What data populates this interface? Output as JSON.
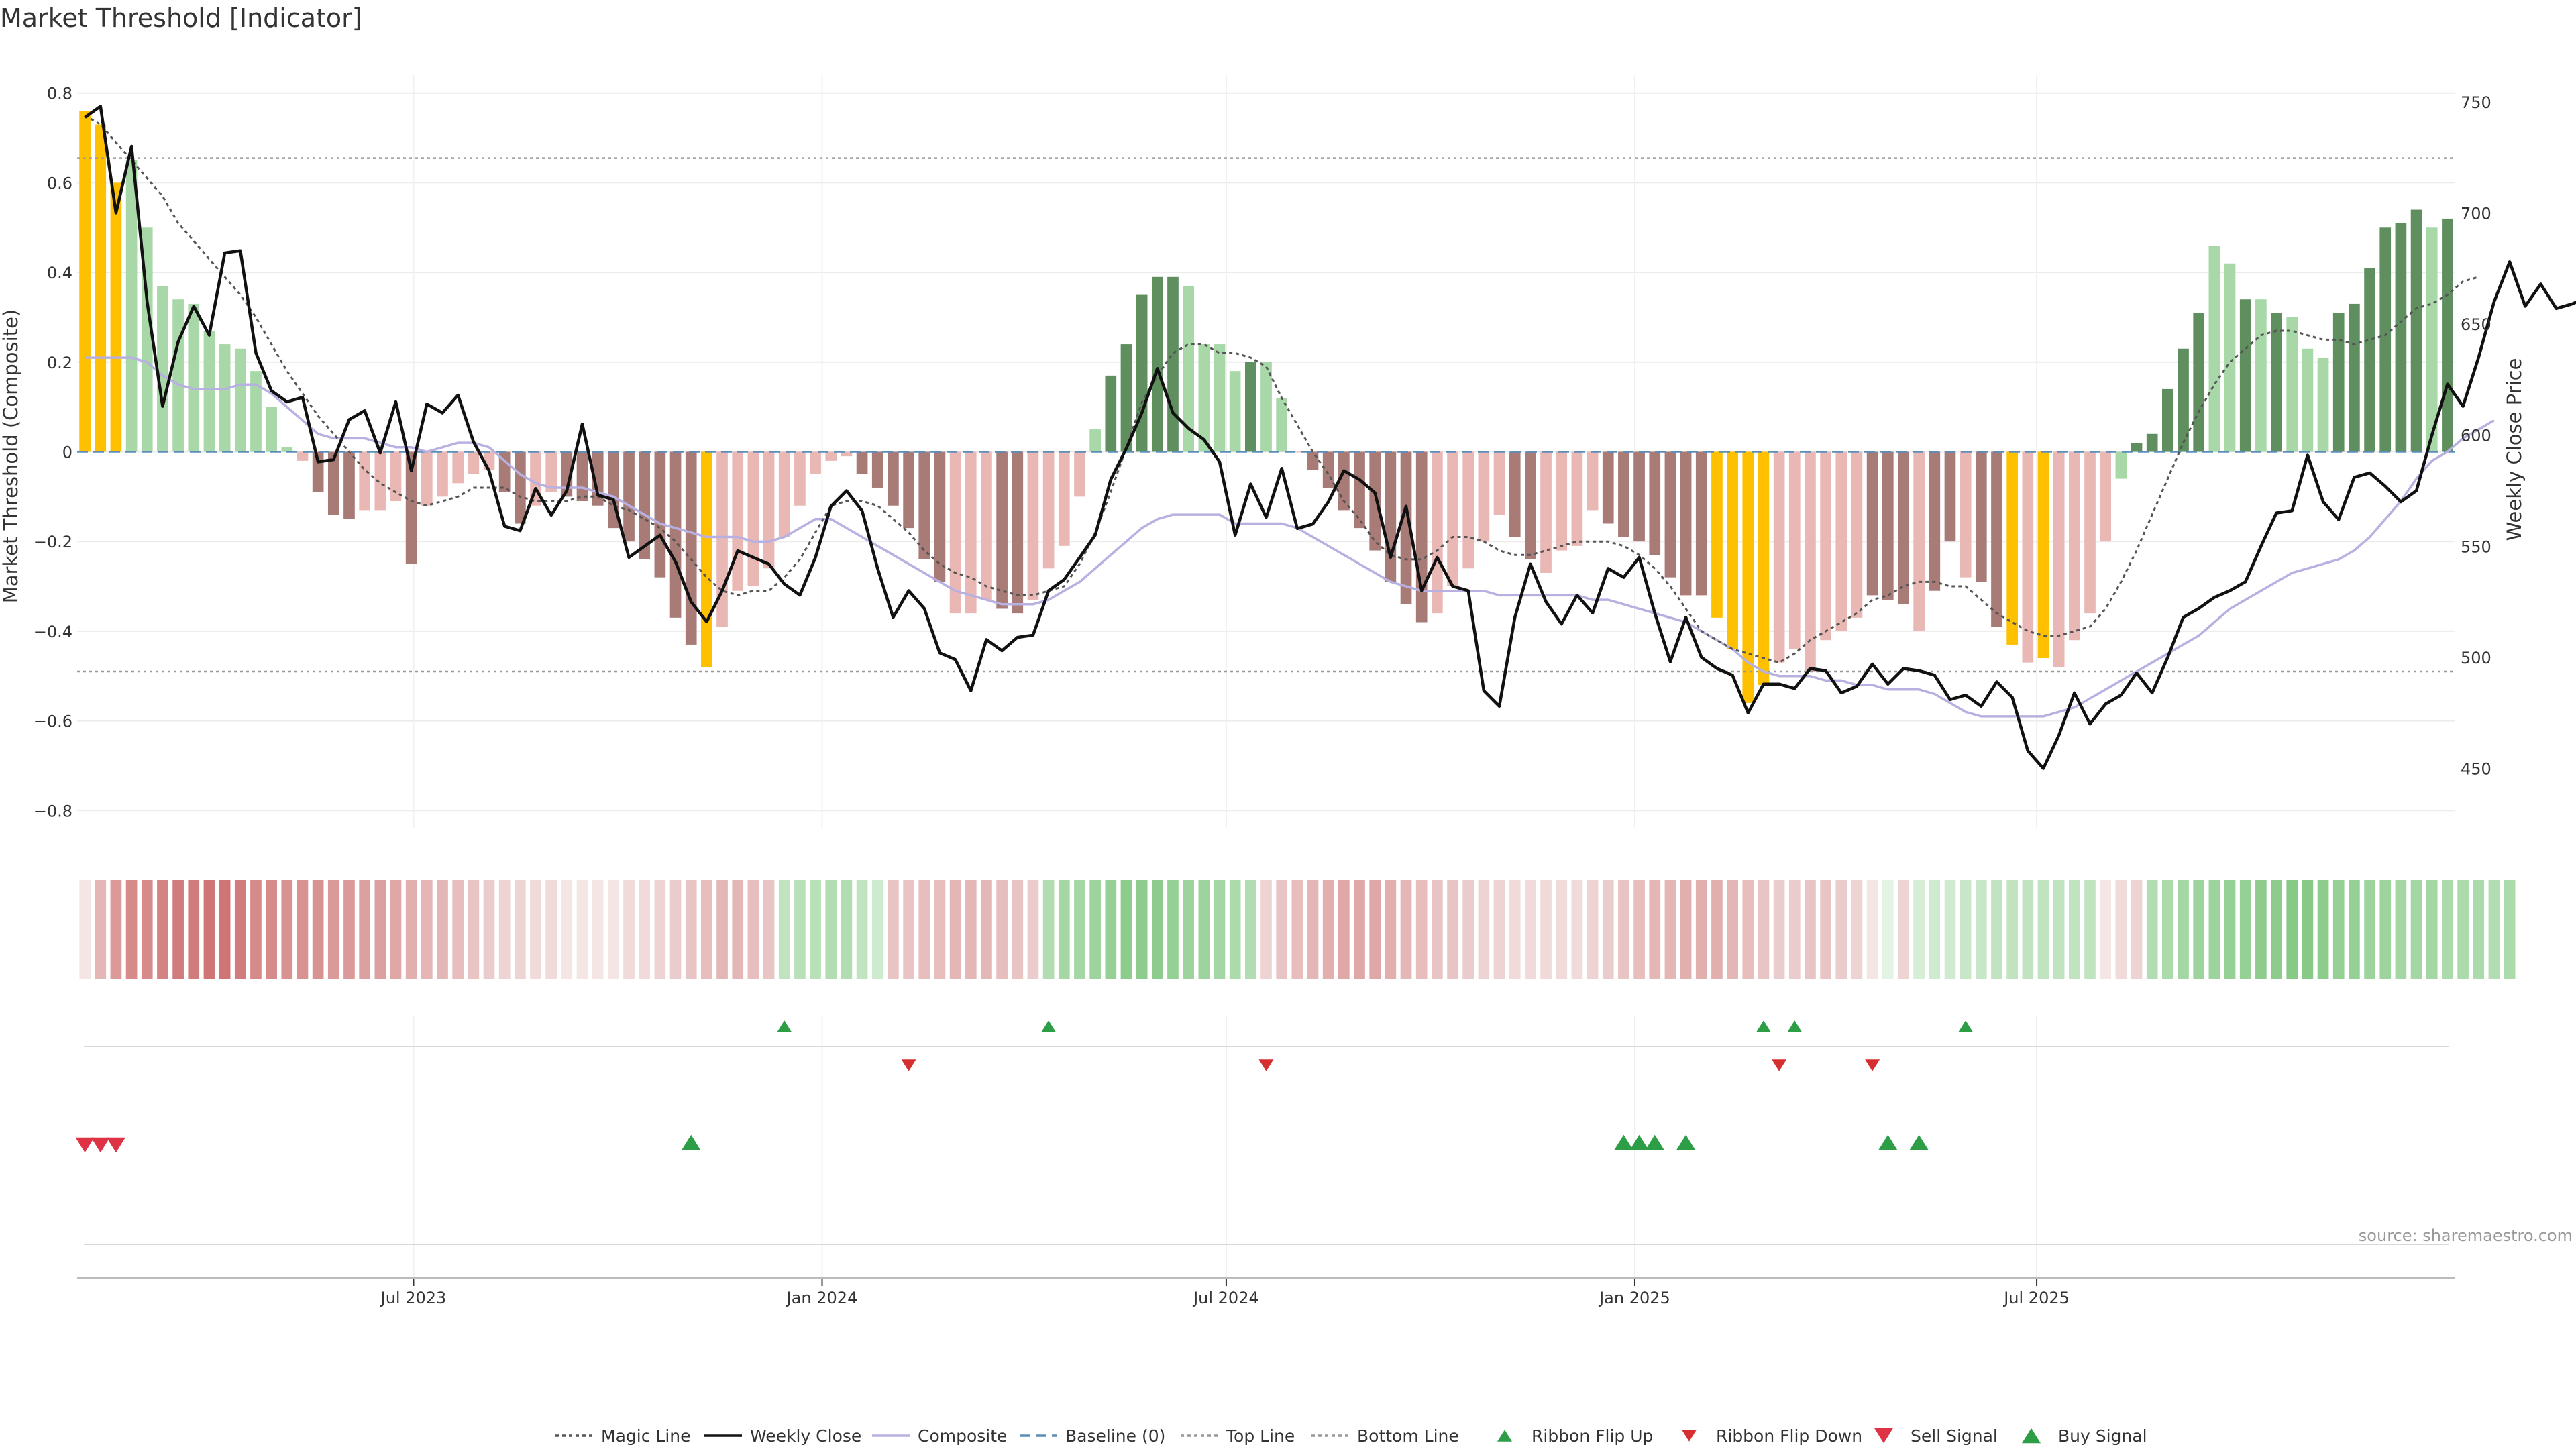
{
  "title": "Market Threshold [Indicator]",
  "source": "source: sharemaestro.com",
  "chart_data": {
    "type": "bar",
    "title": "Market Threshold [Indicator]",
    "ylabel": "Market Threshold (Composite)",
    "y2label": "Weekly Close Price",
    "ylim": [
      -0.84,
      0.84
    ],
    "y2lim": [
      423,
      762
    ],
    "yticks": [
      "0.8",
      "0.6",
      "0.4",
      "0.2",
      "0",
      "−0.2",
      "−0.4",
      "−0.6",
      "−0.8"
    ],
    "y2ticks": [
      "750",
      "700",
      "650",
      "600",
      "550",
      "500",
      "450"
    ],
    "xticks": [
      "Jul 2023",
      "Jan 2024",
      "Jul 2024",
      "Jan 2025",
      "Jul 2025"
    ],
    "x_start": "2023-02-03",
    "x_step_days": 7,
    "top_line": 0.655,
    "bottom_line": -0.49,
    "baseline": 0,
    "composite": [
      0.76,
      0.73,
      0.6,
      0.65,
      0.5,
      0.37,
      0.34,
      0.33,
      0.27,
      0.24,
      0.23,
      0.18,
      0.1,
      0.01,
      -0.02,
      -0.09,
      -0.14,
      -0.15,
      -0.13,
      -0.13,
      -0.11,
      -0.25,
      -0.12,
      -0.1,
      -0.07,
      -0.05,
      -0.04,
      -0.09,
      -0.16,
      -0.12,
      -0.09,
      -0.1,
      -0.11,
      -0.12,
      -0.17,
      -0.2,
      -0.24,
      -0.28,
      -0.37,
      -0.43,
      -0.48,
      -0.39,
      -0.31,
      -0.3,
      -0.26,
      -0.19,
      -0.12,
      -0.05,
      -0.02,
      -0.01,
      -0.05,
      -0.08,
      -0.12,
      -0.17,
      -0.24,
      -0.29,
      -0.36,
      -0.36,
      -0.33,
      -0.35,
      -0.36,
      -0.33,
      -0.26,
      -0.21,
      -0.1,
      0.05,
      0.17,
      0.24,
      0.35,
      0.39,
      0.39,
      0.37,
      0.24,
      0.24,
      0.18,
      0.2,
      0.2,
      0.12,
      0.0,
      -0.04,
      -0.08,
      -0.13,
      -0.17,
      -0.22,
      -0.29,
      -0.34,
      -0.38,
      -0.36,
      -0.3,
      -0.26,
      -0.2,
      -0.14,
      -0.19,
      -0.24,
      -0.27,
      -0.22,
      -0.21,
      -0.13,
      -0.16,
      -0.19,
      -0.2,
      -0.23,
      -0.28,
      -0.32,
      -0.32,
      -0.37,
      -0.44,
      -0.56,
      -0.52,
      -0.47,
      -0.44,
      -0.49,
      -0.42,
      -0.4,
      -0.37,
      -0.32,
      -0.33,
      -0.34,
      -0.4,
      -0.31,
      -0.2,
      -0.28,
      -0.29,
      -0.39,
      -0.43,
      -0.47,
      -0.46,
      -0.48,
      -0.42,
      -0.36,
      -0.2,
      -0.06,
      0.02,
      0.04,
      0.14,
      0.23,
      0.31,
      0.46,
      0.42,
      0.34,
      0.34,
      0.31,
      0.3,
      0.23,
      0.21,
      0.31,
      0.33,
      0.41,
      0.5,
      0.51,
      0.54,
      0.5,
      0.52
    ],
    "bar_colors": [
      "#ffc000",
      "#ffc000",
      "#ffc000",
      "#a8d8a8",
      "#a8d8a8",
      "#a8d8a8",
      "#a8d8a8",
      "#a8d8a8",
      "#a8d8a8",
      "#a8d8a8",
      "#a8d8a8",
      "#a8d8a8",
      "#a8d8a8",
      "#a8d8a8",
      "#eab8b4",
      "#a87b77",
      "#a87b77",
      "#a87b77",
      "#eab8b4",
      "#eab8b4",
      "#eab8b4",
      "#a87b77",
      "#eab8b4",
      "#eab8b4",
      "#eab8b4",
      "#eab8b4",
      "#eab8b4",
      "#a87b77",
      "#a87b77",
      "#eab8b4",
      "#eab8b4",
      "#a87b77",
      "#a87b77",
      "#a87b77",
      "#a87b77",
      "#a87b77",
      "#a87b77",
      "#a87b77",
      "#a87b77",
      "#a87b77",
      "#ffc000",
      "#eab8b4",
      "#eab8b4",
      "#eab8b4",
      "#eab8b4",
      "#eab8b4",
      "#eab8b4",
      "#eab8b4",
      "#eab8b4",
      "#eab8b4",
      "#a87b77",
      "#a87b77",
      "#a87b77",
      "#a87b77",
      "#a87b77",
      "#a87b77",
      "#eab8b4",
      "#eab8b4",
      "#eab8b4",
      "#a87b77",
      "#a87b77",
      "#eab8b4",
      "#eab8b4",
      "#eab8b4",
      "#eab8b4",
      "#a8d8a8",
      "#5f8f5f",
      "#5f8f5f",
      "#5f8f5f",
      "#5f8f5f",
      "#5f8f5f",
      "#a8d8a8",
      "#a8d8a8",
      "#a8d8a8",
      "#a8d8a8",
      "#5f8f5f",
      "#a8d8a8",
      "#a8d8a8",
      "#eab8b4",
      "#a87b77",
      "#a87b77",
      "#a87b77",
      "#a87b77",
      "#a87b77",
      "#a87b77",
      "#a87b77",
      "#a87b77",
      "#eab8b4",
      "#eab8b4",
      "#eab8b4",
      "#eab8b4",
      "#eab8b4",
      "#a87b77",
      "#a87b77",
      "#eab8b4",
      "#eab8b4",
      "#eab8b4",
      "#eab8b4",
      "#a87b77",
      "#a87b77",
      "#a87b77",
      "#a87b77",
      "#a87b77",
      "#a87b77",
      "#a87b77",
      "#ffc000",
      "#ffc000",
      "#ffc000",
      "#ffc000",
      "#eab8b4",
      "#eab8b4",
      "#eab8b4",
      "#eab8b4",
      "#eab8b4",
      "#eab8b4",
      "#a87b77",
      "#a87b77",
      "#a87b77",
      "#eab8b4",
      "#a87b77",
      "#a87b77",
      "#eab8b4",
      "#a87b77",
      "#a87b77",
      "#ffc000",
      "#eab8b4",
      "#ffc000",
      "#eab8b4",
      "#eab8b4",
      "#eab8b4",
      "#eab8b4",
      "#a8d8a8",
      "#5f8f5f",
      "#5f8f5f",
      "#5f8f5f",
      "#5f8f5f",
      "#5f8f5f",
      "#a8d8a8",
      "#a8d8a8",
      "#5f8f5f",
      "#a8d8a8",
      "#5f8f5f",
      "#a8d8a8",
      "#a8d8a8",
      "#a8d8a8",
      "#5f8f5f",
      "#5f8f5f",
      "#5f8f5f",
      "#5f8f5f",
      "#5f8f5f",
      "#5f8f5f",
      "#a8d8a8",
      "#5f8f5f"
    ],
    "weekly_close": [
      743,
      748,
      700,
      730,
      660,
      613,
      642,
      658,
      645,
      682,
      683,
      637,
      620,
      615,
      617,
      588,
      589,
      607,
      611,
      592,
      615,
      584,
      614,
      610,
      618,
      597,
      584,
      559,
      557,
      576,
      564,
      575,
      605,
      573,
      571,
      545,
      550,
      555,
      543,
      525,
      516,
      530,
      548,
      545,
      542,
      533,
      528,
      545,
      568,
      575,
      566,
      540,
      518,
      530,
      522,
      502,
      499,
      485,
      508,
      503,
      509,
      510,
      530,
      535,
      545,
      555,
      580,
      594,
      610,
      630,
      610,
      603,
      598,
      588,
      555,
      578,
      563,
      585,
      558,
      560,
      570,
      584,
      580,
      574,
      545,
      568,
      530,
      545,
      532,
      530,
      485,
      478,
      518,
      542,
      525,
      515,
      528,
      520,
      540,
      536,
      545,
      520,
      498,
      518,
      500,
      495,
      492,
      475,
      488,
      488,
      486,
      495,
      494,
      484,
      487,
      497,
      488,
      495,
      494,
      492,
      481,
      483,
      478,
      489,
      482,
      458,
      450,
      465,
      484,
      470,
      479,
      483,
      493,
      484,
      500,
      518,
      522,
      527,
      530,
      534,
      550,
      565,
      566,
      591,
      570,
      562,
      581,
      583,
      577,
      570,
      575,
      600,
      623,
      613,
      635,
      660,
      678,
      658,
      668,
      657,
      659,
      662
    ],
    "composite_line": [
      0.21,
      0.21,
      0.21,
      0.21,
      0.2,
      0.17,
      0.15,
      0.14,
      0.14,
      0.14,
      0.15,
      0.15,
      0.13,
      0.1,
      0.07,
      0.04,
      0.03,
      0.03,
      0.03,
      0.02,
      0.01,
      0.01,
      0.0,
      0.01,
      0.02,
      0.02,
      0.01,
      -0.02,
      -0.05,
      -0.07,
      -0.08,
      -0.08,
      -0.08,
      -0.09,
      -0.1,
      -0.12,
      -0.14,
      -0.16,
      -0.17,
      -0.18,
      -0.19,
      -0.19,
      -0.19,
      -0.2,
      -0.2,
      -0.19,
      -0.17,
      -0.15,
      -0.15,
      -0.17,
      -0.19,
      -0.21,
      -0.23,
      -0.25,
      -0.27,
      -0.29,
      -0.31,
      -0.32,
      -0.33,
      -0.34,
      -0.34,
      -0.34,
      -0.33,
      -0.31,
      -0.29,
      -0.26,
      -0.23,
      -0.2,
      -0.17,
      -0.15,
      -0.14,
      -0.14,
      -0.14,
      -0.14,
      -0.16,
      -0.16,
      -0.16,
      -0.16,
      -0.17,
      -0.19,
      -0.21,
      -0.23,
      -0.25,
      -0.27,
      -0.29,
      -0.3,
      -0.31,
      -0.31,
      -0.31,
      -0.31,
      -0.31,
      -0.32,
      -0.32,
      -0.32,
      -0.32,
      -0.32,
      -0.32,
      -0.33,
      -0.33,
      -0.34,
      -0.35,
      -0.36,
      -0.37,
      -0.38,
      -0.4,
      -0.42,
      -0.44,
      -0.47,
      -0.49,
      -0.5,
      -0.5,
      -0.5,
      -0.51,
      -0.51,
      -0.52,
      -0.52,
      -0.53,
      -0.53,
      -0.53,
      -0.54,
      -0.56,
      -0.58,
      -0.59,
      -0.59,
      -0.59,
      -0.59,
      -0.59,
      -0.58,
      -0.57,
      -0.55,
      -0.53,
      -0.51,
      -0.49,
      -0.47,
      -0.45,
      -0.43,
      -0.41,
      -0.38,
      -0.35,
      -0.33,
      -0.31,
      -0.29,
      -0.27,
      -0.26,
      -0.25,
      -0.24,
      -0.22,
      -0.19,
      -0.15,
      -0.11,
      -0.06,
      -0.02,
      0.0,
      0.03,
      0.05,
      0.07
    ],
    "magic_line": [
      0.75,
      0.73,
      0.69,
      0.65,
      0.61,
      0.57,
      0.51,
      0.47,
      0.43,
      0.39,
      0.35,
      0.3,
      0.24,
      0.18,
      0.13,
      0.08,
      0.04,
      0.0,
      -0.04,
      -0.07,
      -0.09,
      -0.11,
      -0.12,
      -0.11,
      -0.1,
      -0.08,
      -0.08,
      -0.08,
      -0.1,
      -0.11,
      -0.11,
      -0.11,
      -0.1,
      -0.1,
      -0.12,
      -0.13,
      -0.15,
      -0.17,
      -0.2,
      -0.24,
      -0.28,
      -0.31,
      -0.32,
      -0.31,
      -0.31,
      -0.28,
      -0.24,
      -0.18,
      -0.12,
      -0.11,
      -0.11,
      -0.12,
      -0.15,
      -0.18,
      -0.22,
      -0.25,
      -0.27,
      -0.28,
      -0.3,
      -0.31,
      -0.32,
      -0.32,
      -0.31,
      -0.3,
      -0.25,
      -0.18,
      -0.09,
      0.01,
      0.11,
      0.17,
      0.22,
      0.24,
      0.24,
      0.22,
      0.22,
      0.21,
      0.19,
      0.12,
      0.06,
      0.0,
      -0.05,
      -0.11,
      -0.15,
      -0.2,
      -0.23,
      -0.24,
      -0.24,
      -0.22,
      -0.19,
      -0.19,
      -0.2,
      -0.22,
      -0.23,
      -0.23,
      -0.22,
      -0.21,
      -0.2,
      -0.2,
      -0.2,
      -0.21,
      -0.23,
      -0.26,
      -0.3,
      -0.35,
      -0.4,
      -0.42,
      -0.44,
      -0.45,
      -0.46,
      -0.47,
      -0.45,
      -0.42,
      -0.4,
      -0.38,
      -0.36,
      -0.33,
      -0.32,
      -0.3,
      -0.29,
      -0.29,
      -0.3,
      -0.3,
      -0.33,
      -0.36,
      -0.38,
      -0.4,
      -0.41,
      -0.41,
      -0.4,
      -0.39,
      -0.35,
      -0.29,
      -0.22,
      -0.14,
      -0.06,
      0.02,
      0.09,
      0.15,
      0.2,
      0.23,
      0.26,
      0.27,
      0.27,
      0.26,
      0.25,
      0.25,
      0.24,
      0.25,
      0.26,
      0.29,
      0.32,
      0.33,
      0.35,
      0.38,
      0.39
    ],
    "ribbon_color_scale": [
      "#c85f5f",
      "#f0dada",
      "#ffffff",
      "#d6eed6",
      "#5cb55c"
    ],
    "ribbon": [
      -0.1,
      -0.4,
      -0.6,
      -0.7,
      -0.7,
      -0.75,
      -0.8,
      -0.8,
      -0.85,
      -0.85,
      -0.8,
      -0.7,
      -0.7,
      -0.65,
      -0.65,
      -0.65,
      -0.6,
      -0.6,
      -0.55,
      -0.55,
      -0.5,
      -0.45,
      -0.4,
      -0.4,
      -0.35,
      -0.3,
      -0.25,
      -0.2,
      -0.2,
      -0.15,
      -0.15,
      -0.1,
      -0.1,
      -0.1,
      -0.1,
      -0.15,
      -0.15,
      -0.2,
      -0.25,
      -0.3,
      -0.35,
      -0.4,
      -0.4,
      -0.35,
      -0.3,
      0.3,
      0.35,
      0.35,
      0.4,
      0.4,
      0.3,
      0.2,
      -0.3,
      -0.3,
      -0.35,
      -0.35,
      -0.4,
      -0.4,
      -0.4,
      -0.35,
      -0.3,
      -0.25,
      0.4,
      0.5,
      0.5,
      0.55,
      0.6,
      0.65,
      0.65,
      0.65,
      0.6,
      0.55,
      0.55,
      0.5,
      0.45,
      0.4,
      -0.2,
      -0.3,
      -0.35,
      -0.4,
      -0.45,
      -0.5,
      -0.5,
      -0.5,
      -0.45,
      -0.4,
      -0.35,
      -0.3,
      -0.3,
      -0.25,
      -0.2,
      -0.2,
      -0.15,
      -0.15,
      -0.15,
      -0.15,
      -0.15,
      -0.2,
      -0.25,
      -0.3,
      -0.35,
      -0.4,
      -0.4,
      -0.45,
      -0.45,
      -0.45,
      -0.4,
      -0.35,
      -0.3,
      -0.25,
      -0.25,
      -0.3,
      -0.3,
      -0.25,
      -0.2,
      -0.1,
      0.1,
      -0.2,
      0.15,
      0.2,
      0.2,
      0.25,
      0.25,
      0.3,
      0.3,
      0.3,
      0.3,
      0.3,
      0.3,
      0.3,
      -0.1,
      -0.15,
      -0.2,
      0.4,
      0.45,
      0.5,
      0.55,
      0.55,
      0.6,
      0.6,
      0.65,
      0.65,
      0.7,
      0.7,
      0.65,
      0.6,
      0.6,
      0.55,
      0.55,
      0.5,
      0.5,
      0.5,
      0.45,
      0.45,
      0.45,
      0.4,
      0.45
    ],
    "markers": {
      "ribbon_flip_up": [
        45,
        62,
        108,
        110,
        121
      ],
      "ribbon_flip_down": [
        53,
        76,
        109,
        115
      ],
      "buy_signal": [
        39,
        99,
        100,
        101,
        103,
        116,
        118
      ],
      "sell_signal": [
        0,
        1,
        2
      ]
    },
    "legend": [
      {
        "name": "Magic Line",
        "kind": "dotted-line",
        "color": "#555555"
      },
      {
        "name": "Weekly Close",
        "kind": "solid-line",
        "color": "#111111"
      },
      {
        "name": "Composite",
        "kind": "solid-line",
        "color": "#b8b0e0"
      },
      {
        "name": "Baseline (0)",
        "kind": "dashed-line",
        "color": "#5b8db8"
      },
      {
        "name": "Top Line",
        "kind": "dotted-line",
        "color": "#999999"
      },
      {
        "name": "Bottom Line",
        "kind": "dotted-line",
        "color": "#999999"
      },
      {
        "name": "Ribbon Flip Up",
        "kind": "triangle-up",
        "color": "#2e9e46"
      },
      {
        "name": "Ribbon Flip Down",
        "kind": "triangle-down",
        "color": "#d62f2f"
      },
      {
        "name": "Sell Signal",
        "kind": "triangle-down-large",
        "color": "#dd3344"
      },
      {
        "name": "Buy Signal",
        "kind": "triangle-up-large",
        "color": "#2e9e46"
      }
    ]
  }
}
